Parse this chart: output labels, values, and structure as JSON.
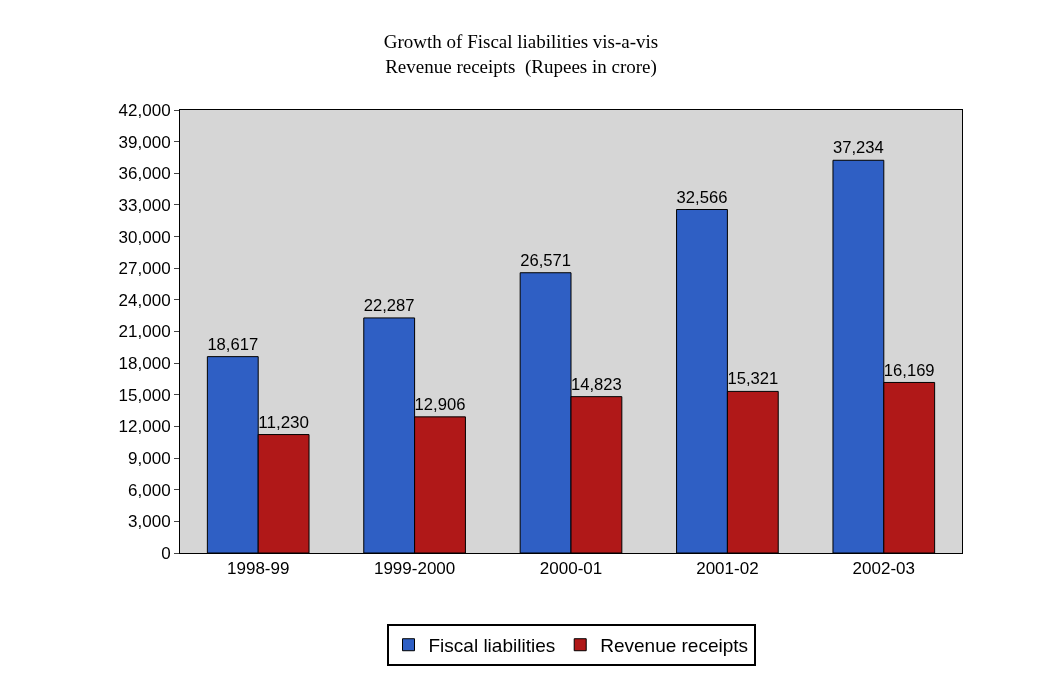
{
  "chart_data": {
    "type": "bar",
    "title": "Growth of Fiscal liabilities vis-a-vis\nRevenue receipts  (Rupees in crore)",
    "categories": [
      "1998-99",
      "1999-2000",
      "2000-01",
      "2001-02",
      "2002-03"
    ],
    "series": [
      {
        "name": "Fiscal liabilities",
        "color": "#2f5fc4",
        "values": [
          18617,
          22287,
          26571,
          32566,
          37234
        ]
      },
      {
        "name": "Revenue receipts",
        "color": "#b01818",
        "values": [
          11230,
          12906,
          14823,
          15321,
          16169
        ]
      }
    ],
    "value_labels": [
      [
        "18,617",
        "22,287",
        "26,571",
        "32,566",
        "37,234"
      ],
      [
        "11,230",
        "12,906",
        "14,823",
        "15,321",
        "16,169"
      ]
    ],
    "ylim": [
      0,
      42000
    ],
    "yticks": [
      {
        "value": 0,
        "label": "0"
      },
      {
        "value": 3000,
        "label": "3,000"
      },
      {
        "value": 6000,
        "label": "6,000"
      },
      {
        "value": 9000,
        "label": "9,000"
      },
      {
        "value": 12000,
        "label": "12,000"
      },
      {
        "value": 15000,
        "label": "15,000"
      },
      {
        "value": 18000,
        "label": "18,000"
      },
      {
        "value": 21000,
        "label": "21,000"
      },
      {
        "value": 24000,
        "label": "24,000"
      },
      {
        "value": 27000,
        "label": "27,000"
      },
      {
        "value": 30000,
        "label": "30,000"
      },
      {
        "value": 33000,
        "label": "33,000"
      },
      {
        "value": 36000,
        "label": "36,000"
      },
      {
        "value": 39000,
        "label": "39,000"
      },
      {
        "value": 42000,
        "label": "42,000"
      }
    ],
    "legend": "bottom",
    "grid": false
  }
}
